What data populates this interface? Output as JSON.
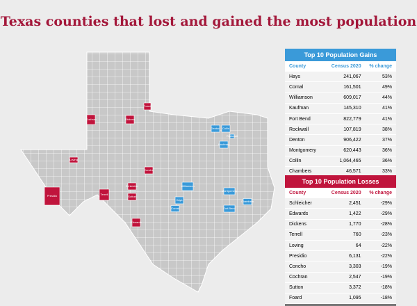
{
  "header": {
    "title": "Texas counties that lost and gained the most population"
  },
  "gains": {
    "title": "Top 10 Population Gains",
    "columns": [
      "County",
      "Census 2020",
      "% change"
    ],
    "rows": [
      [
        "Hays",
        "241,067",
        "53%"
      ],
      [
        "Comal",
        "161,501",
        "49%"
      ],
      [
        "Williamson",
        "609,017",
        "44%"
      ],
      [
        "Kaufman",
        "145,310",
        "41%"
      ],
      [
        "Fort Bend",
        "822,779",
        "41%"
      ],
      [
        "Rockwall",
        "107,819",
        "38%"
      ],
      [
        "Denton",
        "906,422",
        "37%"
      ],
      [
        "Montgomery",
        "620,443",
        "36%"
      ],
      [
        "Collin",
        "1,064,465",
        "36%"
      ],
      [
        "Chambers",
        "46,571",
        "33%"
      ]
    ]
  },
  "losses": {
    "title": "Top 10 Population Losses",
    "columns": [
      "County",
      "Census 2020",
      "% change"
    ],
    "rows": [
      [
        "Schleicher",
        "2,451",
        "-29%"
      ],
      [
        "Edwards",
        "1,422",
        "-29%"
      ],
      [
        "Dickens",
        "1,770",
        "-28%"
      ],
      [
        "Terrell",
        "760",
        "-23%"
      ],
      [
        "Loving",
        "64",
        "-22%"
      ],
      [
        "Presidio",
        "6,131",
        "-22%"
      ],
      [
        "Concho",
        "3,303",
        "-19%"
      ],
      [
        "Cochran",
        "2,547",
        "-19%"
      ],
      [
        "Sutton",
        "3,372",
        "-18%"
      ],
      [
        "Foard",
        "1,095",
        "-18%"
      ]
    ]
  },
  "map": {
    "gain_labels": [
      "Denton",
      "Collin",
      "Rockwall",
      "Kaufman",
      "Williamson",
      "Hays",
      "Comal",
      "Montgomery",
      "Fort Bend",
      "Chambers"
    ],
    "loss_labels": [
      "Cochran",
      "Dickens",
      "Foard",
      "Loving",
      "Presidio",
      "Terrell",
      "Schleicher",
      "Sutton",
      "Edwards",
      "Concho"
    ]
  }
}
